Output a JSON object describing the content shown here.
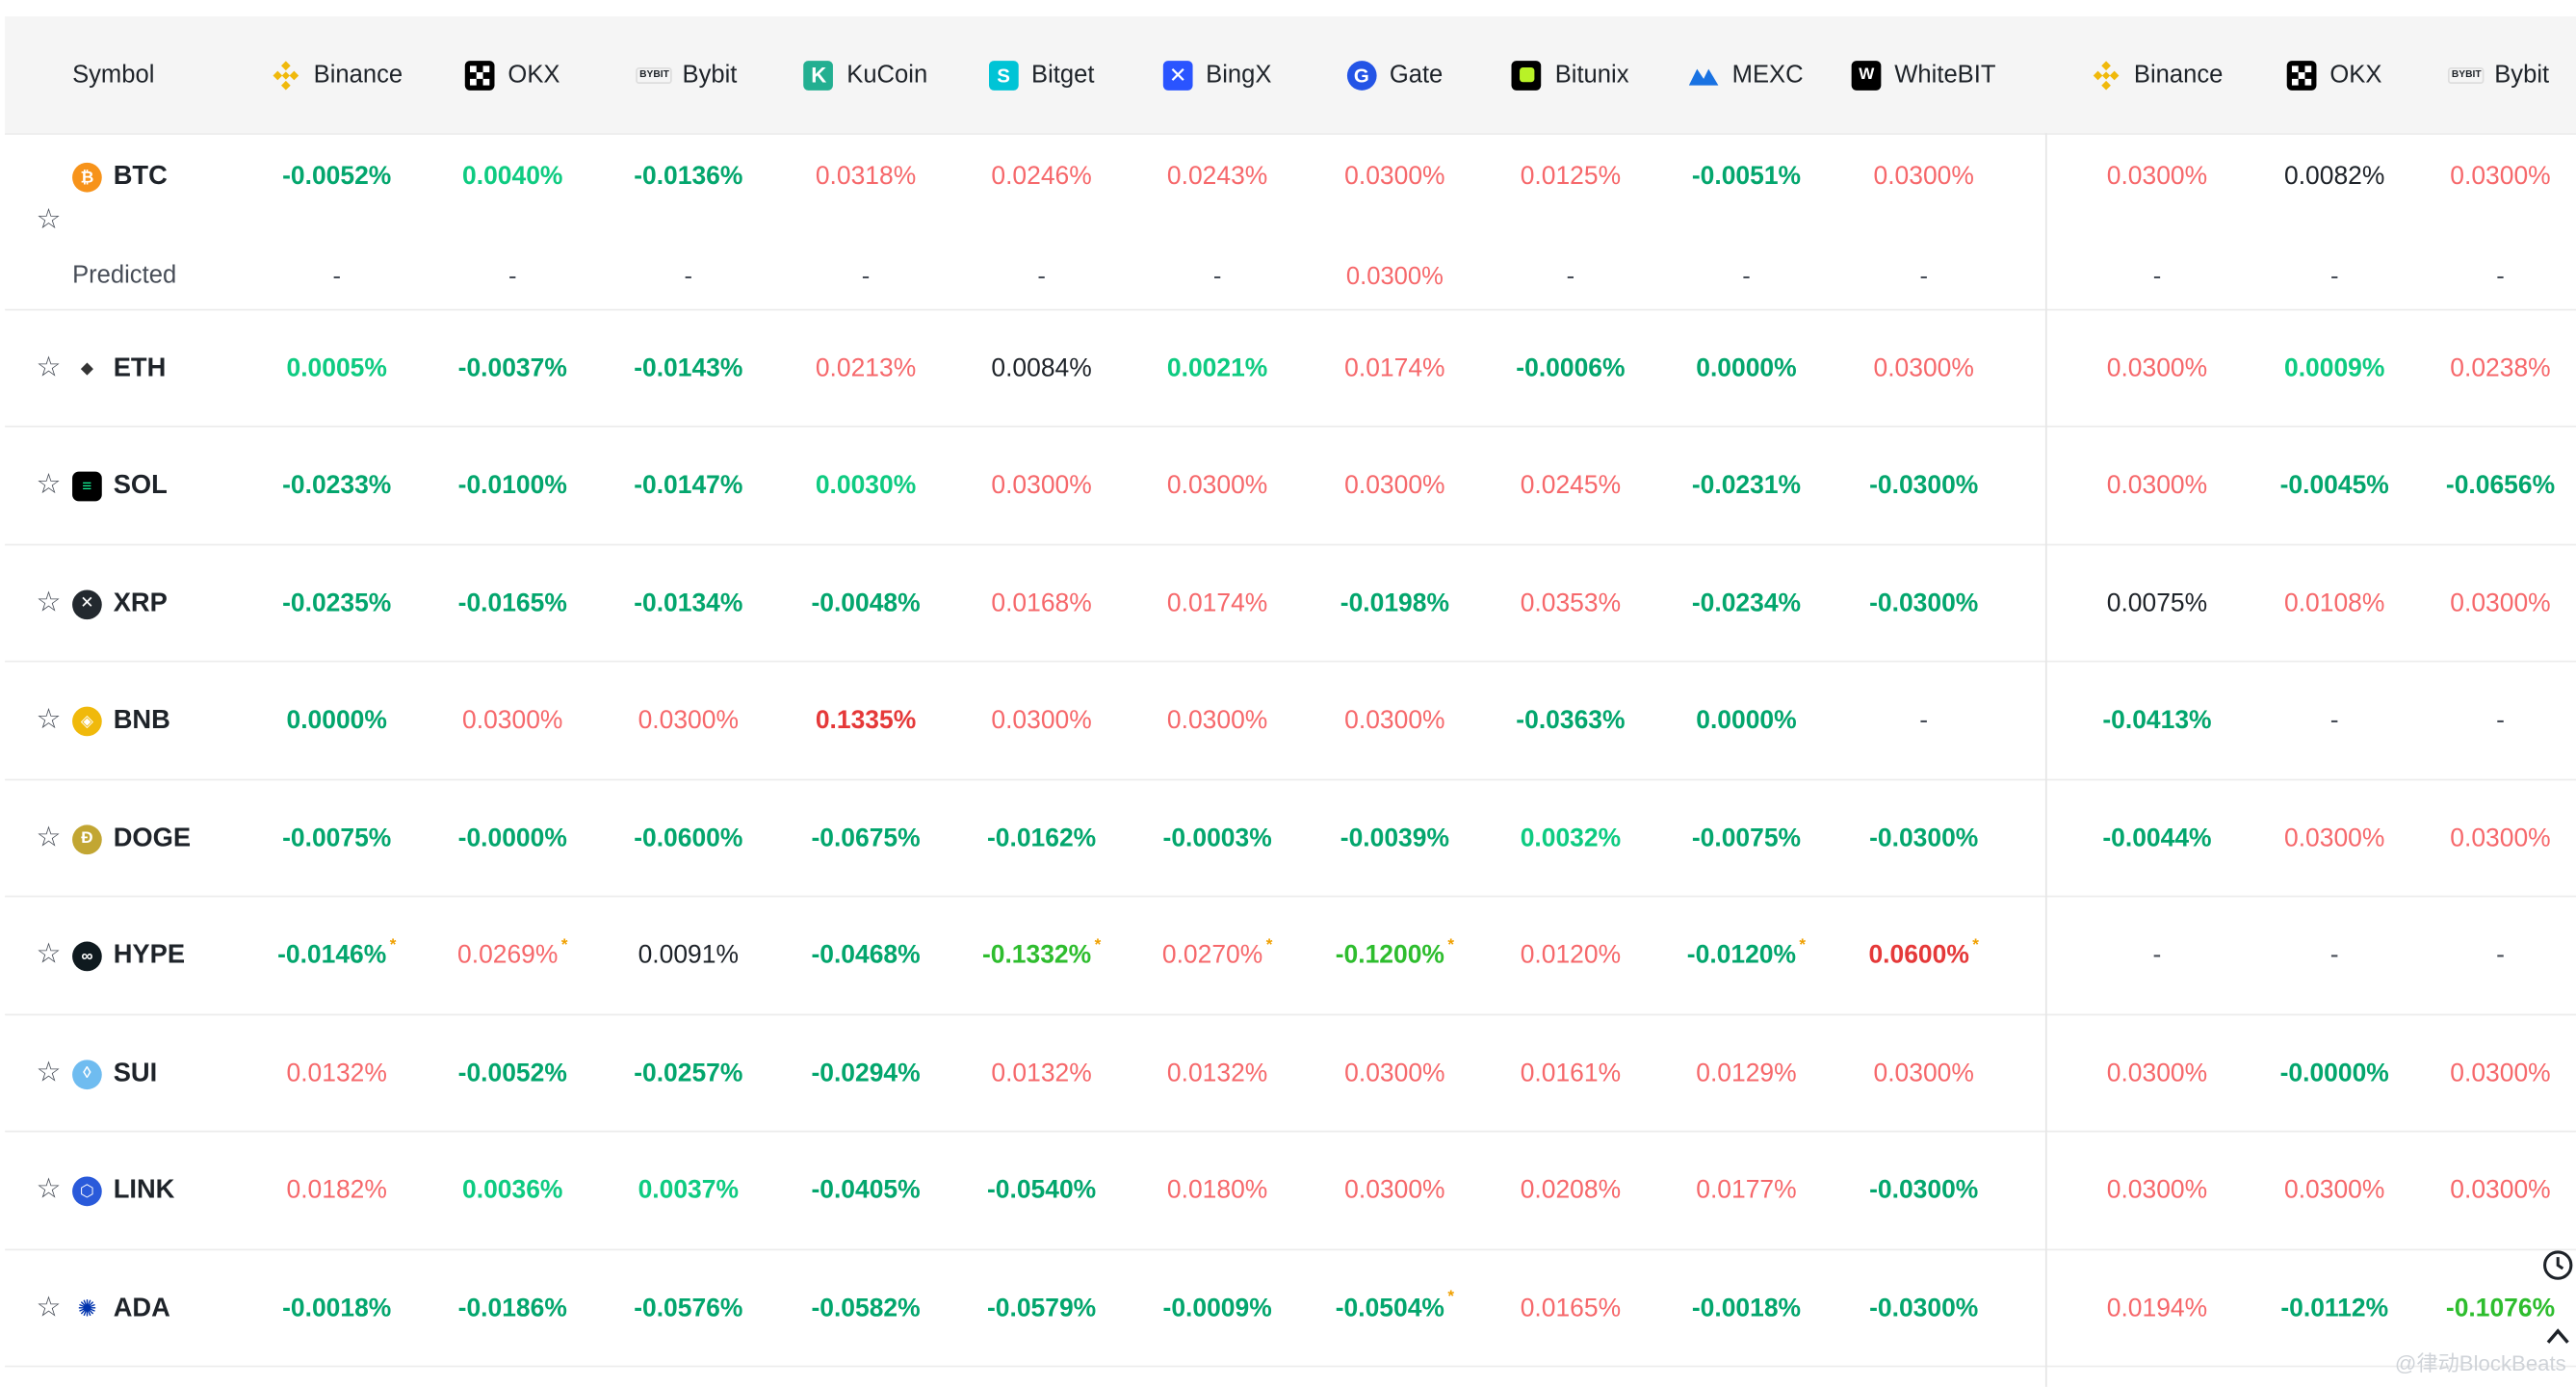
{
  "header": {
    "symbol_label": "Symbol",
    "exchanges": [
      {
        "name": "Binance",
        "icon": "binance-icon",
        "color": "#f0b90b"
      },
      {
        "name": "OKX",
        "icon": "okx-icon",
        "color": "#000000"
      },
      {
        "name": "Bybit",
        "icon": "bybit-icon",
        "color": "#1e2329"
      },
      {
        "name": "KuCoin",
        "icon": "kucoin-icon",
        "color": "#23af91"
      },
      {
        "name": "Bitget",
        "icon": "bitget-icon",
        "color": "#00c4d6"
      },
      {
        "name": "BingX",
        "icon": "bingx-icon",
        "color": "#2a54ff"
      },
      {
        "name": "Gate",
        "icon": "gate-icon",
        "color": "#2354e6"
      },
      {
        "name": "Bitunix",
        "icon": "bitunix-icon",
        "color": "#000000"
      },
      {
        "name": "MEXC",
        "icon": "mexc-icon",
        "color": "#1972e2"
      },
      {
        "name": "WhiteBIT",
        "icon": "whitebit-icon",
        "color": "#000000"
      },
      {
        "name": "Binance",
        "icon": "binance-icon",
        "color": "#f0b90b"
      },
      {
        "name": "OKX",
        "icon": "okx-icon",
        "color": "#000000"
      },
      {
        "name": "Bybit",
        "icon": "bybit-icon",
        "color": "#1e2329"
      }
    ]
  },
  "predicted_label": "Predicted",
  "colors": {
    "positive": "#f6686b",
    "negative": "#03a66d",
    "neutral": "#1e2329",
    "star_marker": "#f0a000"
  },
  "rows": [
    {
      "symbol": "BTC",
      "icon": "btc-icon",
      "color": "#f7931a",
      "rates": [
        {
          "v": "-0.0052%",
          "c": "neg"
        },
        {
          "v": "0.0040%",
          "c": "teal"
        },
        {
          "v": "-0.0136%",
          "c": "neg"
        },
        {
          "v": "0.0318%",
          "c": "pos"
        },
        {
          "v": "0.0246%",
          "c": "pos"
        },
        {
          "v": "0.0243%",
          "c": "pos"
        },
        {
          "v": "0.0300%",
          "c": "pos"
        },
        {
          "v": "0.0125%",
          "c": "pos"
        },
        {
          "v": "-0.0051%",
          "c": "neg"
        },
        {
          "v": "0.0300%",
          "c": "pos"
        },
        {
          "v": "0.0300%",
          "c": "pos"
        },
        {
          "v": "0.0082%",
          "c": "blk"
        },
        {
          "v": "0.0300%",
          "c": "pos"
        }
      ],
      "predicted": [
        {
          "v": "-",
          "c": "dash"
        },
        {
          "v": "-",
          "c": "dash"
        },
        {
          "v": "-",
          "c": "dash"
        },
        {
          "v": "-",
          "c": "dash"
        },
        {
          "v": "-",
          "c": "dash"
        },
        {
          "v": "-",
          "c": "dash"
        },
        {
          "v": "0.0300%",
          "c": "pos"
        },
        {
          "v": "-",
          "c": "dash"
        },
        {
          "v": "-",
          "c": "dash"
        },
        {
          "v": "-",
          "c": "dash"
        },
        {
          "v": "-",
          "c": "dash"
        },
        {
          "v": "-",
          "c": "dash"
        },
        {
          "v": "-",
          "c": "dash"
        }
      ]
    },
    {
      "symbol": "ETH",
      "icon": "eth-icon",
      "color": "#627eea",
      "rates": [
        {
          "v": "0.0005%",
          "c": "teal"
        },
        {
          "v": "-0.0037%",
          "c": "neg"
        },
        {
          "v": "-0.0143%",
          "c": "neg"
        },
        {
          "v": "0.0213%",
          "c": "pos"
        },
        {
          "v": "0.0084%",
          "c": "blk"
        },
        {
          "v": "0.0021%",
          "c": "teal"
        },
        {
          "v": "0.0174%",
          "c": "pos"
        },
        {
          "v": "-0.0006%",
          "c": "neg"
        },
        {
          "v": "0.0000%",
          "c": "neg"
        },
        {
          "v": "0.0300%",
          "c": "pos"
        },
        {
          "v": "0.0300%",
          "c": "pos"
        },
        {
          "v": "0.0009%",
          "c": "teal"
        },
        {
          "v": "0.0238%",
          "c": "pos"
        }
      ]
    },
    {
      "symbol": "SOL",
      "icon": "sol-icon",
      "color": "#14f195",
      "rates": [
        {
          "v": "-0.0233%",
          "c": "neg"
        },
        {
          "v": "-0.0100%",
          "c": "neg"
        },
        {
          "v": "-0.0147%",
          "c": "neg"
        },
        {
          "v": "0.0030%",
          "c": "teal"
        },
        {
          "v": "0.0300%",
          "c": "pos"
        },
        {
          "v": "0.0300%",
          "c": "pos"
        },
        {
          "v": "0.0300%",
          "c": "pos"
        },
        {
          "v": "0.0245%",
          "c": "pos"
        },
        {
          "v": "-0.0231%",
          "c": "neg"
        },
        {
          "v": "-0.0300%",
          "c": "neg"
        },
        {
          "v": "0.0300%",
          "c": "pos"
        },
        {
          "v": "-0.0045%",
          "c": "neg"
        },
        {
          "v": "-0.0656%",
          "c": "neg"
        }
      ]
    },
    {
      "symbol": "XRP",
      "icon": "xrp-icon",
      "color": "#23292f",
      "rates": [
        {
          "v": "-0.0235%",
          "c": "neg"
        },
        {
          "v": "-0.0165%",
          "c": "neg"
        },
        {
          "v": "-0.0134%",
          "c": "neg"
        },
        {
          "v": "-0.0048%",
          "c": "neg"
        },
        {
          "v": "0.0168%",
          "c": "pos"
        },
        {
          "v": "0.0174%",
          "c": "pos"
        },
        {
          "v": "-0.0198%",
          "c": "neg"
        },
        {
          "v": "0.0353%",
          "c": "pos"
        },
        {
          "v": "-0.0234%",
          "c": "neg"
        },
        {
          "v": "-0.0300%",
          "c": "neg"
        },
        {
          "v": "0.0075%",
          "c": "blk"
        },
        {
          "v": "0.0108%",
          "c": "pos"
        },
        {
          "v": "0.0300%",
          "c": "pos"
        }
      ]
    },
    {
      "symbol": "BNB",
      "icon": "bnb-icon",
      "color": "#f0b90b",
      "rates": [
        {
          "v": "0.0000%",
          "c": "neg"
        },
        {
          "v": "0.0300%",
          "c": "pos"
        },
        {
          "v": "0.0300%",
          "c": "pos"
        },
        {
          "v": "0.1335%",
          "c": "red"
        },
        {
          "v": "0.0300%",
          "c": "pos"
        },
        {
          "v": "0.0300%",
          "c": "pos"
        },
        {
          "v": "0.0300%",
          "c": "pos"
        },
        {
          "v": "-0.0363%",
          "c": "neg"
        },
        {
          "v": "0.0000%",
          "c": "neg"
        },
        {
          "v": "-",
          "c": "dash"
        },
        {
          "v": "-0.0413%",
          "c": "neg"
        },
        {
          "v": "-",
          "c": "dash"
        },
        {
          "v": "-",
          "c": "dash"
        }
      ]
    },
    {
      "symbol": "DOGE",
      "icon": "doge-icon",
      "color": "#c2a633",
      "rates": [
        {
          "v": "-0.0075%",
          "c": "neg"
        },
        {
          "v": "-0.0000%",
          "c": "neg"
        },
        {
          "v": "-0.0600%",
          "c": "neg"
        },
        {
          "v": "-0.0675%",
          "c": "neg"
        },
        {
          "v": "-0.0162%",
          "c": "neg"
        },
        {
          "v": "-0.0003%",
          "c": "neg"
        },
        {
          "v": "-0.0039%",
          "c": "neg"
        },
        {
          "v": "0.0032%",
          "c": "teal"
        },
        {
          "v": "-0.0075%",
          "c": "neg"
        },
        {
          "v": "-0.0300%",
          "c": "neg"
        },
        {
          "v": "-0.0044%",
          "c": "neg"
        },
        {
          "v": "0.0300%",
          "c": "pos"
        },
        {
          "v": "0.0300%",
          "c": "pos"
        }
      ]
    },
    {
      "symbol": "HYPE",
      "icon": "hype-icon",
      "color": "#0f1a1f",
      "rates": [
        {
          "v": "-0.0146%",
          "c": "neg",
          "star": "*"
        },
        {
          "v": "0.0269%",
          "c": "pos",
          "star": "*"
        },
        {
          "v": "0.0091%",
          "c": "blk"
        },
        {
          "v": "-0.0468%",
          "c": "neg"
        },
        {
          "v": "-0.1332%",
          "c": "lime",
          "star": "*"
        },
        {
          "v": "0.0270%",
          "c": "pos",
          "star": "*"
        },
        {
          "v": "-0.1200%",
          "c": "lime",
          "star": "*"
        },
        {
          "v": "0.0120%",
          "c": "pos"
        },
        {
          "v": "-0.0120%",
          "c": "neg",
          "star": "*"
        },
        {
          "v": "0.0600%",
          "c": "red",
          "star": "*"
        },
        {
          "v": "-",
          "c": "dash"
        },
        {
          "v": "-",
          "c": "dash"
        },
        {
          "v": "-",
          "c": "dash"
        }
      ]
    },
    {
      "symbol": "SUI",
      "icon": "sui-icon",
      "color": "#6fbcf0",
      "rates": [
        {
          "v": "0.0132%",
          "c": "pos"
        },
        {
          "v": "-0.0052%",
          "c": "neg"
        },
        {
          "v": "-0.0257%",
          "c": "neg"
        },
        {
          "v": "-0.0294%",
          "c": "neg"
        },
        {
          "v": "0.0132%",
          "c": "pos"
        },
        {
          "v": "0.0132%",
          "c": "pos"
        },
        {
          "v": "0.0300%",
          "c": "pos"
        },
        {
          "v": "0.0161%",
          "c": "pos"
        },
        {
          "v": "0.0129%",
          "c": "pos"
        },
        {
          "v": "0.0300%",
          "c": "pos"
        },
        {
          "v": "0.0300%",
          "c": "pos"
        },
        {
          "v": "-0.0000%",
          "c": "neg"
        },
        {
          "v": "0.0300%",
          "c": "pos"
        }
      ]
    },
    {
      "symbol": "LINK",
      "icon": "link-icon",
      "color": "#2a5ada",
      "rates": [
        {
          "v": "0.0182%",
          "c": "pos"
        },
        {
          "v": "0.0036%",
          "c": "teal"
        },
        {
          "v": "0.0037%",
          "c": "teal"
        },
        {
          "v": "-0.0405%",
          "c": "neg"
        },
        {
          "v": "-0.0540%",
          "c": "neg"
        },
        {
          "v": "0.0180%",
          "c": "pos"
        },
        {
          "v": "0.0300%",
          "c": "pos"
        },
        {
          "v": "0.0208%",
          "c": "pos"
        },
        {
          "v": "0.0177%",
          "c": "pos"
        },
        {
          "v": "-0.0300%",
          "c": "neg"
        },
        {
          "v": "0.0300%",
          "c": "pos"
        },
        {
          "v": "0.0300%",
          "c": "pos"
        },
        {
          "v": "0.0300%",
          "c": "pos"
        }
      ]
    },
    {
      "symbol": "ADA",
      "icon": "ada-icon",
      "color": "#0033ad",
      "rates": [
        {
          "v": "-0.0018%",
          "c": "neg"
        },
        {
          "v": "-0.0186%",
          "c": "neg"
        },
        {
          "v": "-0.0576%",
          "c": "neg"
        },
        {
          "v": "-0.0582%",
          "c": "neg"
        },
        {
          "v": "-0.0579%",
          "c": "neg"
        },
        {
          "v": "-0.0009%",
          "c": "neg"
        },
        {
          "v": "-0.0504%",
          "c": "neg",
          "star": "*"
        },
        {
          "v": "0.0165%",
          "c": "pos"
        },
        {
          "v": "-0.0018%",
          "c": "neg"
        },
        {
          "v": "-0.0300%",
          "c": "neg"
        },
        {
          "v": "0.0194%",
          "c": "pos"
        },
        {
          "v": "-0.0112%",
          "c": "neg"
        },
        {
          "v": "-0.1076%",
          "c": "lime"
        }
      ]
    }
  ],
  "watermark": "@律动BlockBeats",
  "side_controls": {
    "timer_icon": "timer-icon",
    "scroll_top_icon": "chevron-up-icon"
  }
}
